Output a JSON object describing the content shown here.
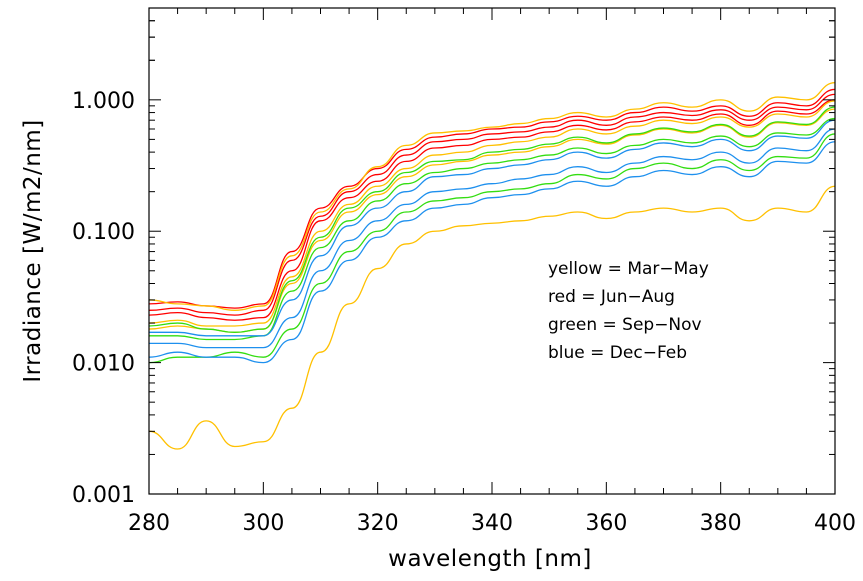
{
  "chart_data": {
    "type": "line",
    "title": "",
    "xlabel": "wavelength [nm]",
    "ylabel": "Irradiance [W/m2/nm]",
    "xlim": [
      280,
      400
    ],
    "ylim": [
      0.001,
      5.0
    ],
    "yscale": "log",
    "grid": false,
    "x_ticks": [
      280,
      300,
      320,
      340,
      360,
      380,
      400
    ],
    "x_tick_labels": [
      "280",
      "300",
      "320",
      "340",
      "360",
      "380",
      "400"
    ],
    "y_ticks": [
      0.001,
      0.01,
      0.1,
      1.0
    ],
    "y_tick_labels": [
      "0.001",
      "0.010",
      "0.100",
      "1.000"
    ],
    "legend_placement": "center-right",
    "legend": [
      {
        "text": "yellow = Mar−May",
        "color": "#ffc000"
      },
      {
        "text": "red = Jun−Aug",
        "color": "#ff0000"
      },
      {
        "text": "green = Sep−Nov",
        "color": "#33dd11"
      },
      {
        "text": "blue = Dec−Feb",
        "color": "#1e90ee"
      }
    ],
    "x": [
      280,
      285,
      290,
      295,
      300,
      305,
      310,
      315,
      320,
      325,
      330,
      335,
      340,
      345,
      350,
      355,
      360,
      365,
      370,
      375,
      380,
      385,
      390,
      395,
      400
    ],
    "series": [
      {
        "color": "#ff0000",
        "values": [
          0.028,
          0.029,
          0.027,
          0.026,
          0.028,
          0.07,
          0.15,
          0.22,
          0.3,
          0.42,
          0.52,
          0.55,
          0.6,
          0.62,
          0.68,
          0.75,
          0.7,
          0.8,
          0.88,
          0.82,
          0.9,
          0.75,
          0.95,
          0.9,
          1.2
        ]
      },
      {
        "color": "#ff0000",
        "values": [
          0.025,
          0.026,
          0.024,
          0.023,
          0.025,
          0.06,
          0.13,
          0.2,
          0.27,
          0.38,
          0.48,
          0.5,
          0.55,
          0.57,
          0.62,
          0.7,
          0.64,
          0.74,
          0.8,
          0.76,
          0.84,
          0.7,
          0.88,
          0.84,
          1.1
        ]
      },
      {
        "color": "#ff0000",
        "values": [
          0.023,
          0.024,
          0.022,
          0.021,
          0.022,
          0.05,
          0.12,
          0.18,
          0.24,
          0.34,
          0.43,
          0.45,
          0.5,
          0.52,
          0.57,
          0.64,
          0.59,
          0.68,
          0.74,
          0.7,
          0.78,
          0.64,
          0.82,
          0.78,
          1.0
        ]
      },
      {
        "color": "#ffc000",
        "values": [
          0.03,
          0.028,
          0.027,
          0.025,
          0.027,
          0.065,
          0.14,
          0.21,
          0.31,
          0.45,
          0.56,
          0.58,
          0.62,
          0.66,
          0.72,
          0.8,
          0.74,
          0.85,
          0.95,
          0.88,
          1.0,
          0.82,
          1.05,
          1.0,
          1.35
        ]
      },
      {
        "color": "#ffc000",
        "values": [
          0.02,
          0.021,
          0.019,
          0.019,
          0.02,
          0.045,
          0.1,
          0.16,
          0.22,
          0.3,
          0.38,
          0.4,
          0.45,
          0.48,
          0.52,
          0.6,
          0.55,
          0.63,
          0.7,
          0.66,
          0.74,
          0.62,
          0.78,
          0.74,
          0.98
        ]
      },
      {
        "color": "#ffc000",
        "values": [
          0.018,
          0.019,
          0.018,
          0.017,
          0.018,
          0.04,
          0.085,
          0.14,
          0.19,
          0.26,
          0.32,
          0.34,
          0.38,
          0.4,
          0.44,
          0.5,
          0.46,
          0.54,
          0.6,
          0.56,
          0.64,
          0.52,
          0.67,
          0.64,
          0.85
        ]
      },
      {
        "color": "#33dd11",
        "values": [
          0.019,
          0.02,
          0.018,
          0.017,
          0.018,
          0.042,
          0.09,
          0.15,
          0.2,
          0.28,
          0.34,
          0.35,
          0.4,
          0.42,
          0.46,
          0.52,
          0.47,
          0.55,
          0.61,
          0.57,
          0.65,
          0.53,
          0.68,
          0.65,
          0.88
        ]
      },
      {
        "color": "#33dd11",
        "values": [
          0.016,
          0.016,
          0.015,
          0.015,
          0.016,
          0.035,
          0.075,
          0.12,
          0.17,
          0.23,
          0.28,
          0.3,
          0.33,
          0.35,
          0.38,
          0.43,
          0.39,
          0.45,
          0.5,
          0.47,
          0.53,
          0.44,
          0.56,
          0.54,
          0.72
        ]
      },
      {
        "color": "#33dd11",
        "values": [
          0.01,
          0.011,
          0.011,
          0.012,
          0.011,
          0.018,
          0.04,
          0.07,
          0.1,
          0.14,
          0.17,
          0.18,
          0.2,
          0.21,
          0.23,
          0.27,
          0.25,
          0.3,
          0.33,
          0.3,
          0.35,
          0.29,
          0.37,
          0.36,
          0.55
        ]
      },
      {
        "color": "#1e90ee",
        "values": [
          0.017,
          0.017,
          0.016,
          0.016,
          0.016,
          0.03,
          0.065,
          0.11,
          0.15,
          0.2,
          0.26,
          0.27,
          0.3,
          0.32,
          0.35,
          0.4,
          0.36,
          0.42,
          0.47,
          0.44,
          0.5,
          0.41,
          0.53,
          0.51,
          0.7
        ]
      },
      {
        "color": "#1e90ee",
        "values": [
          0.014,
          0.014,
          0.013,
          0.013,
          0.013,
          0.022,
          0.05,
          0.085,
          0.12,
          0.16,
          0.2,
          0.21,
          0.23,
          0.25,
          0.27,
          0.31,
          0.28,
          0.33,
          0.37,
          0.35,
          0.4,
          0.33,
          0.43,
          0.41,
          0.6
        ]
      },
      {
        "color": "#1e90ee",
        "values": [
          0.011,
          0.012,
          0.011,
          0.011,
          0.01,
          0.015,
          0.035,
          0.06,
          0.09,
          0.12,
          0.15,
          0.16,
          0.18,
          0.19,
          0.21,
          0.24,
          0.22,
          0.26,
          0.29,
          0.27,
          0.31,
          0.26,
          0.34,
          0.33,
          0.48
        ]
      },
      {
        "color": "#ffc000",
        "values": [
          0.003,
          0.0022,
          0.0036,
          0.0023,
          0.0025,
          0.0045,
          0.012,
          0.028,
          0.052,
          0.08,
          0.1,
          0.11,
          0.115,
          0.12,
          0.13,
          0.14,
          0.125,
          0.14,
          0.15,
          0.14,
          0.15,
          0.12,
          0.15,
          0.14,
          0.22
        ]
      }
    ]
  }
}
